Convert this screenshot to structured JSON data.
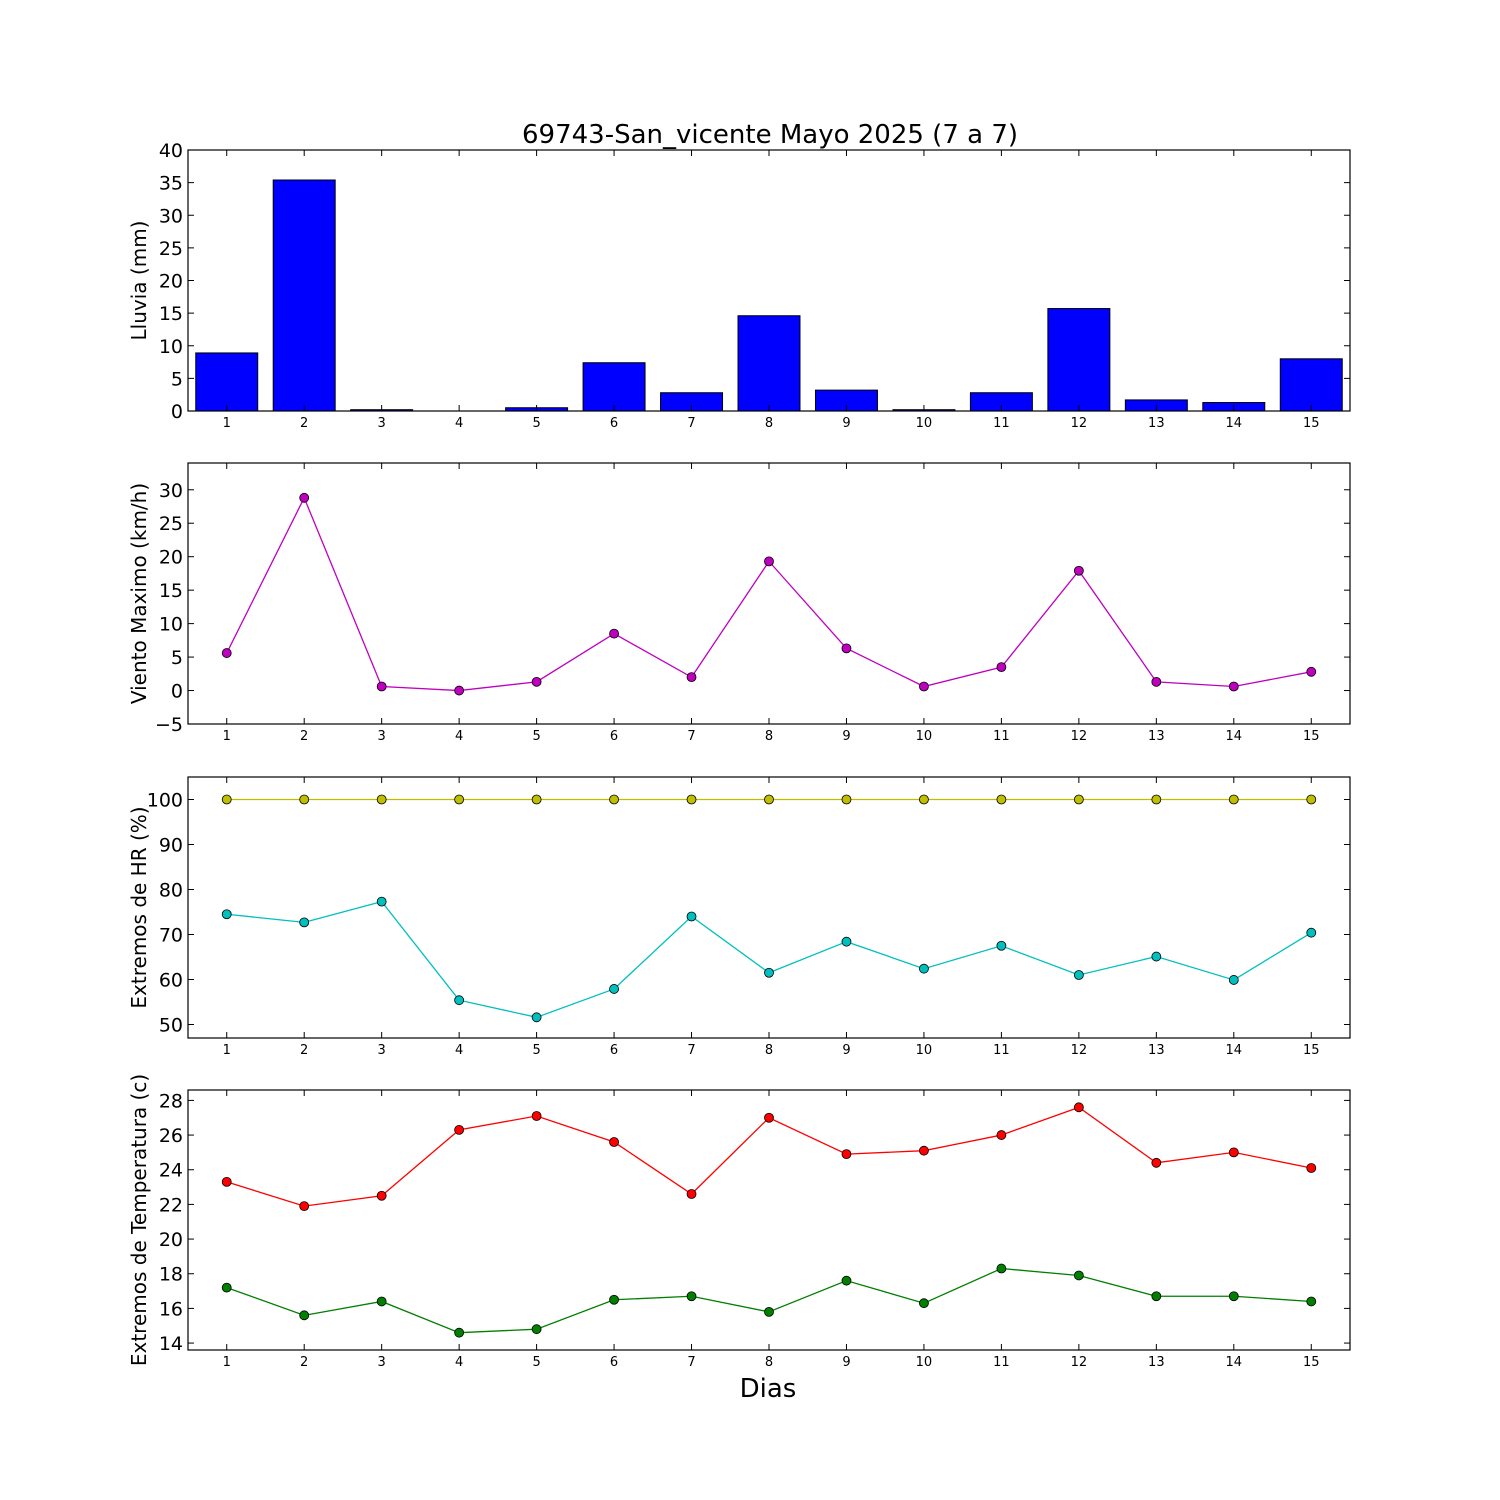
{
  "title": "69743-San_vicente Mayo 2025  (7 a 7)",
  "xlabel": "Dias",
  "chart_data": [
    {
      "type": "bar",
      "ylabel": "Lluvia (mm)",
      "categories": [
        "1",
        "2",
        "3",
        "4",
        "5",
        "6",
        "7",
        "8",
        "9",
        "10",
        "11",
        "12",
        "13",
        "14",
        "15"
      ],
      "ylim": [
        0,
        40
      ],
      "yticks": [
        0,
        5,
        10,
        15,
        20,
        25,
        30,
        35,
        40
      ],
      "grid": false,
      "series": [
        {
          "color": "#0000ff",
          "values": [
            8.9,
            35.4,
            0.2,
            0.0,
            0.5,
            7.4,
            2.8,
            14.6,
            3.2,
            0.2,
            2.8,
            15.7,
            1.7,
            1.3,
            8.0
          ]
        }
      ]
    },
    {
      "type": "line",
      "ylabel": "Viento Maximo (km/h)",
      "categories": [
        "1",
        "2",
        "3",
        "4",
        "5",
        "6",
        "7",
        "8",
        "9",
        "10",
        "11",
        "12",
        "13",
        "14",
        "15"
      ],
      "ylim": [
        -5,
        34
      ],
      "yticks": [
        -5,
        0,
        5,
        10,
        15,
        20,
        25,
        30
      ],
      "grid": false,
      "series": [
        {
          "color": "#bf00bf",
          "values": [
            5.6,
            28.8,
            0.6,
            0.0,
            1.3,
            8.5,
            2.0,
            19.3,
            6.3,
            0.6,
            3.5,
            17.9,
            1.3,
            0.6,
            2.8
          ]
        }
      ]
    },
    {
      "type": "line",
      "ylabel": "Extremos de HR (%)",
      "categories": [
        "1",
        "2",
        "3",
        "4",
        "5",
        "6",
        "7",
        "8",
        "9",
        "10",
        "11",
        "12",
        "13",
        "14",
        "15"
      ],
      "ylim": [
        47,
        105
      ],
      "yticks": [
        50,
        60,
        70,
        80,
        90,
        100
      ],
      "grid": false,
      "series": [
        {
          "color": "#bfbf00",
          "values": [
            100,
            100,
            100,
            100,
            100,
            100,
            100,
            100,
            100,
            100,
            100,
            100,
            100,
            100,
            100
          ]
        },
        {
          "color": "#00bfbf",
          "values": [
            74.5,
            72.7,
            77.3,
            55.4,
            51.6,
            57.9,
            74.0,
            61.5,
            68.4,
            62.4,
            67.5,
            61.0,
            65.1,
            59.9,
            70.4
          ]
        }
      ]
    },
    {
      "type": "line",
      "ylabel": "Extremos de Temperatura (c)",
      "categories": [
        "1",
        "2",
        "3",
        "4",
        "5",
        "6",
        "7",
        "8",
        "9",
        "10",
        "11",
        "12",
        "13",
        "14",
        "15"
      ],
      "ylim": [
        13.6,
        28.6
      ],
      "yticks": [
        14,
        16,
        18,
        20,
        22,
        24,
        26,
        28
      ],
      "grid": false,
      "series": [
        {
          "color": "#ff0000",
          "values": [
            23.3,
            21.9,
            22.5,
            26.3,
            27.1,
            25.6,
            22.6,
            27.0,
            24.9,
            25.1,
            26.0,
            27.6,
            24.4,
            25.0,
            24.1
          ]
        },
        {
          "color": "#007f00",
          "values": [
            17.2,
            15.6,
            16.4,
            14.6,
            14.8,
            16.5,
            16.7,
            15.8,
            17.6,
            16.3,
            18.3,
            17.9,
            16.7,
            16.7,
            16.4
          ]
        }
      ]
    }
  ]
}
